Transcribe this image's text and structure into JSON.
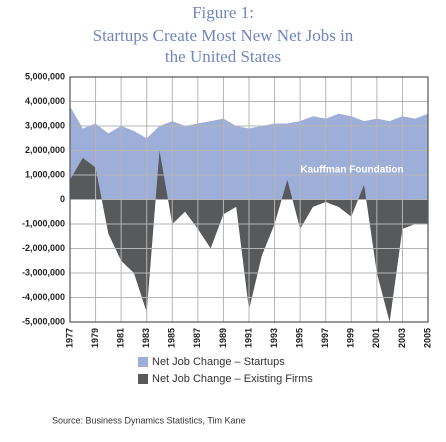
{
  "chart_data": {
    "type": "area",
    "title": "Figure 1:",
    "subtitle": [
      "Startups Create Most New Net Jobs in",
      "the United States"
    ],
    "annotation": "Kauffman Foundation",
    "source": "Source: Business Dynamics Statistics, Tim Kane",
    "x": [
      1977,
      1978,
      1979,
      1980,
      1981,
      1982,
      1983,
      1984,
      1985,
      1986,
      1987,
      1988,
      1989,
      1990,
      1991,
      1992,
      1993,
      1994,
      1995,
      1996,
      1997,
      1998,
      1999,
      2000,
      2001,
      2002,
      2003,
      2004,
      2005
    ],
    "xlim": [
      1977,
      2005
    ],
    "xticks": [
      1977,
      1979,
      1981,
      1983,
      1985,
      1987,
      1989,
      1991,
      1993,
      1995,
      1997,
      1999,
      2001,
      2003,
      2005
    ],
    "ylim": [
      -5000000,
      5000000
    ],
    "yticks": [
      {
        "value": -5000000,
        "label": "-5,000,000"
      },
      {
        "value": -4000000,
        "label": "-4,000,000"
      },
      {
        "value": -3000000,
        "label": "-3,000,000"
      },
      {
        "value": -2000000,
        "label": "-2,000,000"
      },
      {
        "value": -1000000,
        "label": "-1,000,000"
      },
      0,
      {
        "value": 1000000,
        "label": "1,000,000"
      },
      {
        "value": 2000000,
        "label": "2,000,000"
      },
      {
        "value": 3000000,
        "label": "3,000,000"
      },
      {
        "value": 4000000,
        "label": "4,000,000"
      },
      {
        "value": 5000000,
        "label": "5,000,000"
      }
    ],
    "grid": true,
    "series": [
      {
        "name": "Net Job Change – Startups",
        "color": "#9dafd9",
        "values": [
          3800000,
          2900000,
          3100000,
          2700000,
          3000000,
          2800000,
          2500000,
          3000000,
          3200000,
          3000000,
          3100000,
          3200000,
          3300000,
          3000000,
          2900000,
          3000000,
          3100000,
          3100000,
          3200000,
          3400000,
          3300000,
          3500000,
          3400000,
          3200000,
          3300000,
          3200000,
          3400000,
          3300000,
          3500000
        ]
      },
      {
        "name": "Net Job Change – Existing Firms",
        "color": "#58595b",
        "values": [
          800000,
          1700000,
          1300000,
          -1400000,
          -2500000,
          -3000000,
          -4600000,
          2000000,
          -1000000,
          -500000,
          -1200000,
          -2000000,
          -600000,
          -300000,
          -4500000,
          -2300000,
          -1000000,
          800000,
          -1200000,
          -300000,
          -100000,
          -300000,
          -700000,
          600000,
          -3000000,
          -5000000,
          -1200000,
          -1000000,
          -1000000
        ]
      }
    ]
  }
}
